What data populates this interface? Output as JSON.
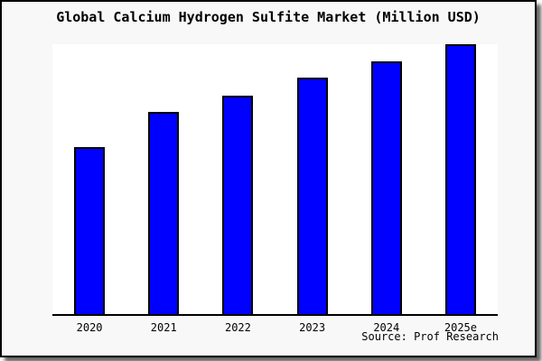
{
  "chart": {
    "title": "Global Calcium Hydrogen Sulfite Market (Million USD)",
    "source_label": "Source: Prof Research",
    "bar_color": "#0000ff",
    "bar_edge_color": "#000000",
    "frame_background": "#f8f8f8",
    "plot_background": "#ffffff",
    "axis_color": "#000000"
  },
  "chart_data": {
    "type": "bar",
    "title": "Global Calcium Hydrogen Sulfite Market (Million USD)",
    "categories": [
      "2020",
      "2021",
      "2022",
      "2023",
      "2024",
      "2025e"
    ],
    "values": [
      62,
      75,
      81,
      87.5,
      93.5,
      100
    ],
    "xlabel": "",
    "ylabel": "",
    "ylim": [
      0,
      100
    ],
    "grid": false,
    "legend": false,
    "y_axis_labels_shown": false,
    "value_note": "relative estimates; chart displays no numeric y-axis scale",
    "source": "Source: Prof Research"
  }
}
